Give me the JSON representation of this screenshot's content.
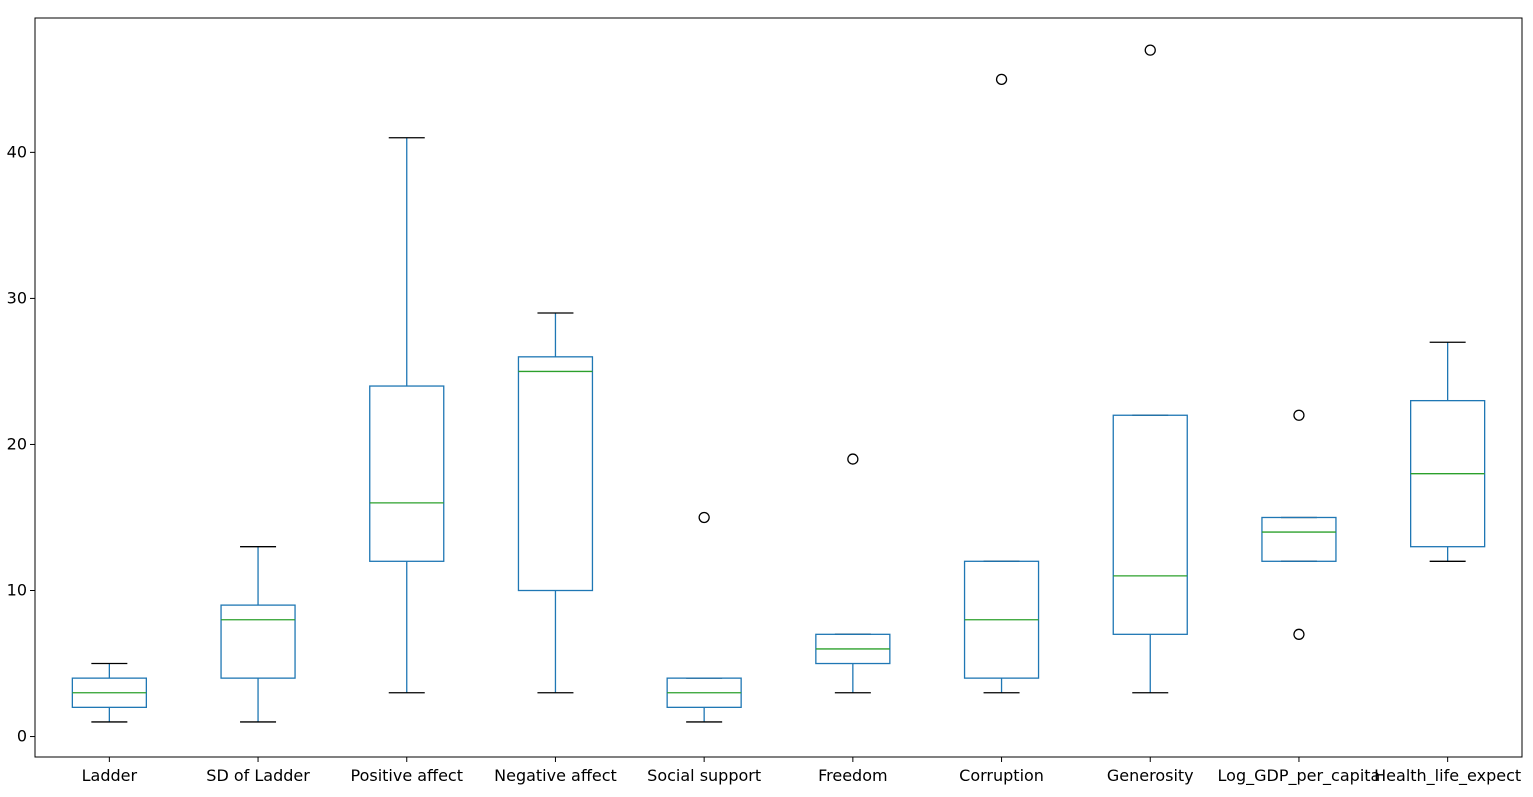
{
  "chart_data": {
    "type": "boxplot",
    "title": "",
    "xlabel": "",
    "ylabel": "",
    "ylim": [
      -1.4,
      49.2
    ],
    "yticks": [
      0,
      10,
      20,
      30,
      40
    ],
    "grid": false,
    "colors": {
      "box": "#1f77b4",
      "median": "#2ca02c",
      "whisker": "#1f77b4",
      "cap": "#000000",
      "flier": "#000000",
      "axes": "#000000"
    },
    "categories": [
      "Ladder",
      "SD of Ladder",
      "Positive affect",
      "Negative affect",
      "Social support",
      "Freedom",
      "Corruption",
      "Generosity",
      "Log_GDP_per_capita",
      "Health_life_expect"
    ],
    "boxes": [
      {
        "whislo": 1,
        "q1": 2,
        "med": 3,
        "q3": 4,
        "whishi": 5,
        "fliers": []
      },
      {
        "whislo": 1,
        "q1": 4,
        "med": 8,
        "q3": 9,
        "whishi": 13,
        "fliers": []
      },
      {
        "whislo": 3,
        "q1": 12,
        "med": 16,
        "q3": 24,
        "whishi": 41,
        "fliers": []
      },
      {
        "whislo": 3,
        "q1": 10,
        "med": 25,
        "q3": 26,
        "whishi": 29,
        "fliers": []
      },
      {
        "whislo": 1,
        "q1": 2,
        "med": 3,
        "q3": 4,
        "whishi": 4,
        "fliers": [
          15
        ]
      },
      {
        "whislo": 3,
        "q1": 5,
        "med": 6,
        "q3": 7,
        "whishi": 7,
        "fliers": [
          19
        ]
      },
      {
        "whislo": 3,
        "q1": 4,
        "med": 8,
        "q3": 12,
        "whishi": 12,
        "fliers": [
          45
        ]
      },
      {
        "whislo": 3,
        "q1": 7,
        "med": 11,
        "q3": 22,
        "whishi": 22,
        "fliers": [
          47
        ]
      },
      {
        "whislo": 12,
        "q1": 12,
        "med": 14,
        "q3": 15,
        "whishi": 15,
        "fliers": [
          22,
          7
        ]
      },
      {
        "whislo": 12,
        "q1": 13,
        "med": 18,
        "q3": 23,
        "whishi": 27,
        "fliers": []
      }
    ]
  }
}
